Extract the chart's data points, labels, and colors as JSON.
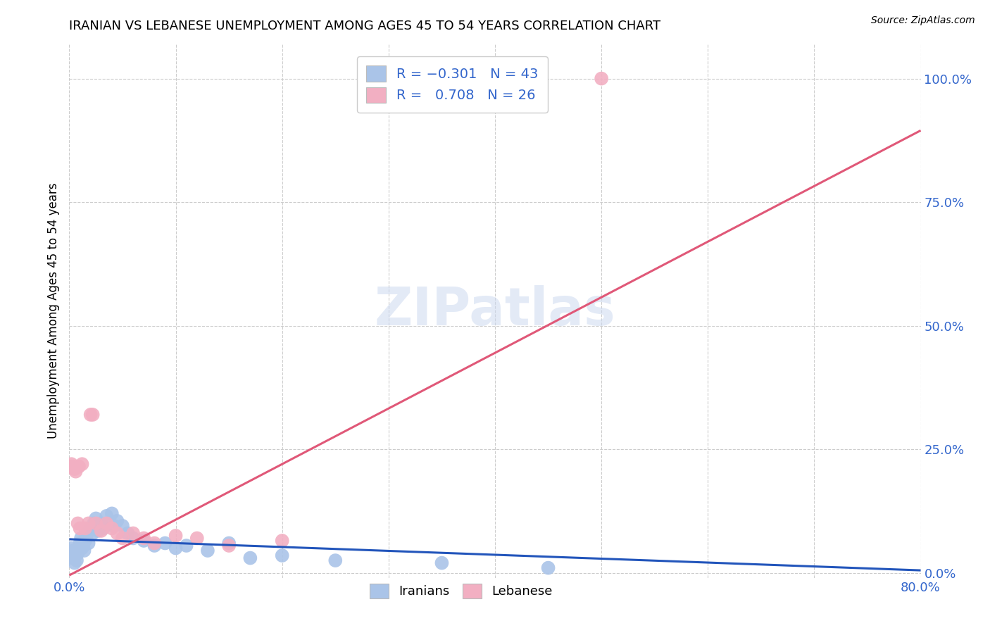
{
  "title": "IRANIAN VS LEBANESE UNEMPLOYMENT AMONG AGES 45 TO 54 YEARS CORRELATION CHART",
  "source": "Source: ZipAtlas.com",
  "ylabel": "Unemployment Among Ages 45 to 54 years",
  "x_ticks": [
    0.0,
    0.1,
    0.2,
    0.3,
    0.4,
    0.5,
    0.6,
    0.7,
    0.8
  ],
  "y_ticks_right": [
    0.0,
    0.25,
    0.5,
    0.75,
    1.0
  ],
  "y_tick_labels_right": [
    "0.0%",
    "25.0%",
    "50.0%",
    "75.0%",
    "100.0%"
  ],
  "xlim": [
    0.0,
    0.8
  ],
  "ylim": [
    -0.01,
    1.07
  ],
  "iranian_color": "#aac4e8",
  "lebanese_color": "#f2afc2",
  "iranian_line_color": "#2255bb",
  "lebanese_line_color": "#e05878",
  "R_iranian": -0.301,
  "N_iranian": 43,
  "R_lebanese": 0.708,
  "N_lebanese": 26,
  "watermark": "ZIPatlas",
  "legend_labels": [
    "Iranians",
    "Lebanese"
  ],
  "iranians_x": [
    0.002,
    0.003,
    0.004,
    0.005,
    0.006,
    0.007,
    0.008,
    0.01,
    0.011,
    0.012,
    0.013,
    0.014,
    0.015,
    0.016,
    0.017,
    0.018,
    0.02,
    0.022,
    0.023,
    0.025,
    0.027,
    0.028,
    0.03,
    0.032,
    0.035,
    0.04,
    0.042,
    0.045,
    0.05,
    0.055,
    0.06,
    0.07,
    0.08,
    0.09,
    0.1,
    0.11,
    0.13,
    0.15,
    0.17,
    0.2,
    0.25,
    0.35,
    0.45
  ],
  "iranians_y": [
    0.05,
    0.03,
    0.045,
    0.02,
    0.035,
    0.025,
    0.04,
    0.06,
    0.07,
    0.05,
    0.055,
    0.045,
    0.065,
    0.075,
    0.08,
    0.06,
    0.09,
    0.08,
    0.1,
    0.11,
    0.085,
    0.095,
    0.1,
    0.09,
    0.115,
    0.12,
    0.095,
    0.105,
    0.095,
    0.08,
    0.07,
    0.065,
    0.055,
    0.06,
    0.05,
    0.055,
    0.045,
    0.06,
    0.03,
    0.035,
    0.025,
    0.02,
    0.01
  ],
  "lebanese_x": [
    0.002,
    0.003,
    0.005,
    0.006,
    0.008,
    0.009,
    0.01,
    0.012,
    0.015,
    0.018,
    0.02,
    0.022,
    0.025,
    0.03,
    0.035,
    0.04,
    0.045,
    0.05,
    0.06,
    0.07,
    0.08,
    0.1,
    0.12,
    0.15,
    0.2,
    0.5
  ],
  "lebanese_y": [
    0.22,
    0.215,
    0.21,
    0.205,
    0.1,
    0.215,
    0.09,
    0.22,
    0.09,
    0.1,
    0.32,
    0.32,
    0.1,
    0.085,
    0.1,
    0.09,
    0.08,
    0.07,
    0.08,
    0.07,
    0.06,
    0.075,
    0.07,
    0.055,
    0.065,
    1.0
  ],
  "iran_trend_x": [
    0.0,
    0.8
  ],
  "iran_trend_y": [
    0.068,
    0.005
  ],
  "leb_trend_x": [
    0.0,
    0.8
  ],
  "leb_trend_y": [
    -0.005,
    0.895
  ]
}
